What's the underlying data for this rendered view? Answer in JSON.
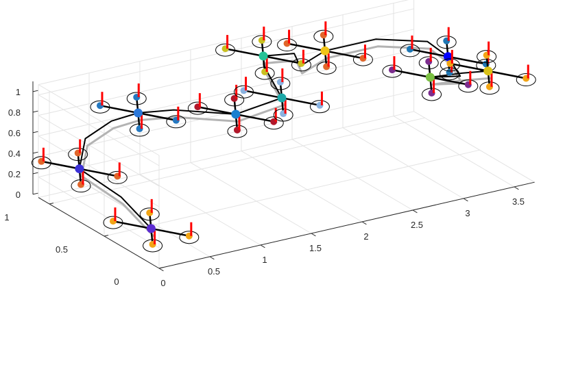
{
  "chart_data": {
    "type": "line",
    "projection": "3d",
    "title": "",
    "xlabel": "",
    "ylabel": "",
    "zlabel": "",
    "grid": true,
    "xlim": [
      0,
      3.7
    ],
    "ylim": [
      0,
      1.1
    ],
    "zlim": [
      0,
      1.1
    ],
    "x_ticks": [
      "0",
      "0.5",
      "1",
      "1.5",
      "2",
      "2.5",
      "3",
      "3.5"
    ],
    "x_tick_values": [
      0,
      0.5,
      1,
      1.5,
      2,
      2.5,
      3,
      3.5
    ],
    "y_ticks": [
      "0",
      "0.5",
      "1"
    ],
    "y_tick_values": [
      0,
      0.5,
      1
    ],
    "z_ticks": [
      "0",
      "0.2",
      "0.4",
      "0.6",
      "0.8",
      "1"
    ],
    "z_tick_values": [
      0,
      0.2,
      0.4,
      0.6,
      0.8,
      1
    ],
    "series": [
      {
        "role": "actual-trajectory",
        "color": "#000000",
        "points": [
          [
            0.3,
            0.35,
            0.1
          ],
          [
            0.22,
            0.55,
            0.3
          ],
          [
            0.08,
            0.8,
            0.45
          ],
          [
            0.3,
            0.95,
            0.6
          ],
          [
            0.45,
            0.85,
            0.8
          ],
          [
            0.55,
            0.7,
            0.95
          ],
          [
            0.9,
            0.7,
            0.9
          ],
          [
            1.35,
            0.55,
            0.85
          ],
          [
            1.75,
            0.5,
            0.95
          ],
          [
            1.95,
            0.85,
            1.0
          ],
          [
            2.0,
            0.9,
            1.05
          ],
          [
            2.25,
            0.85,
            1.05
          ],
          [
            2.2,
            0.75,
            1.0
          ],
          [
            2.5,
            0.8,
            1.05
          ],
          [
            3.0,
            0.8,
            1.05
          ],
          [
            3.4,
            0.7,
            1.0
          ],
          [
            3.55,
            0.65,
            0.85
          ],
          [
            3.4,
            0.4,
            0.85
          ],
          [
            3.05,
            0.35,
            0.95
          ],
          [
            3.2,
            0.2,
            1.05
          ],
          [
            3.35,
            0.1,
            1.1
          ]
        ]
      },
      {
        "role": "reference-trajectory",
        "color": "#b3b3b3",
        "points": [
          [
            0.3,
            0.35,
            0.05
          ],
          [
            0.22,
            0.55,
            0.25
          ],
          [
            0.08,
            0.8,
            0.4
          ],
          [
            0.3,
            0.95,
            0.55
          ],
          [
            0.45,
            0.85,
            0.75
          ],
          [
            0.55,
            0.7,
            0.9
          ],
          [
            0.9,
            0.7,
            0.85
          ],
          [
            1.35,
            0.55,
            0.8
          ],
          [
            1.75,
            0.5,
            0.9
          ],
          [
            1.95,
            0.85,
            0.95
          ],
          [
            2.0,
            0.9,
            1.0
          ],
          [
            2.25,
            0.85,
            1.0
          ],
          [
            2.2,
            0.75,
            0.95
          ],
          [
            2.5,
            0.8,
            1.0
          ],
          [
            3.0,
            0.8,
            1.0
          ],
          [
            3.4,
            0.7,
            0.95
          ],
          [
            3.55,
            0.65,
            0.8
          ],
          [
            3.4,
            0.4,
            0.8
          ],
          [
            3.05,
            0.35,
            0.9
          ],
          [
            3.2,
            0.2,
            1.0
          ],
          [
            3.35,
            0.1,
            1.05
          ]
        ]
      }
    ],
    "vehicles": [
      {
        "position": [
          0.3,
          0.35,
          0.1
        ],
        "center_color": "#5b2bd1",
        "rotor_color": "#f2a516"
      },
      {
        "position": [
          0.08,
          0.8,
          0.45
        ],
        "center_color": "#3b31d6",
        "rotor_color": "#e0662a"
      },
      {
        "position": [
          0.55,
          0.7,
          0.95
        ],
        "center_color": "#2b78d9",
        "rotor_color": "#2578c0"
      },
      {
        "position": [
          1.35,
          0.55,
          0.85
        ],
        "center_color": "#1a7fcf",
        "rotor_color": "#b0182b"
      },
      {
        "position": [
          1.75,
          0.5,
          0.95
        ],
        "center_color": "#1ca8a8",
        "rotor_color": "#8ab2e0"
      },
      {
        "position": [
          2.0,
          0.9,
          1.05
        ],
        "center_color": "#27c296",
        "rotor_color": "#c9c020"
      },
      {
        "position": [
          2.5,
          0.8,
          1.05
        ],
        "center_color": "#f0c419",
        "rotor_color": "#e0662a"
      },
      {
        "position": [
          3.05,
          0.35,
          0.95
        ],
        "center_color": "#7bc043",
        "rotor_color": "#7b2d8e"
      },
      {
        "position": [
          3.55,
          0.65,
          0.85
        ],
        "center_color": "#0000ff",
        "rotor_color": "#1f77b4"
      },
      {
        "position": [
          3.35,
          0.1,
          1.1
        ],
        "center_color": "#d9c218",
        "rotor_color": "#f2a516"
      }
    ],
    "thrust_color": "#ff0000"
  }
}
